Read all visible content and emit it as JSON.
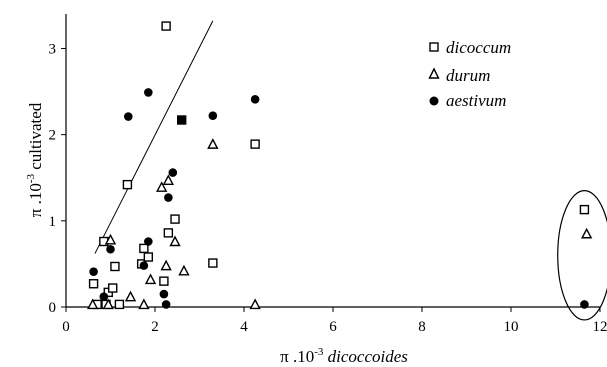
{
  "chart_data": {
    "type": "scatter",
    "xlabel": "π .10",
    "xlabel_exp": "-3",
    "xlabel_italic": "dicoccoides",
    "ylabel": "π .10",
    "ylabel_exp": "-3",
    "ylabel_suffix": "cultivated",
    "xlim": [
      0,
      12
    ],
    "ylim": [
      0,
      3.4
    ],
    "xticks": [
      "0",
      "2",
      "4",
      "6",
      "8",
      "10",
      "12"
    ],
    "yticks": [
      "0",
      "1",
      "2",
      "3"
    ],
    "grid": false,
    "legend_position": "top-right",
    "series": [
      {
        "name": "dicoccum",
        "marker": "square-open",
        "points": [
          [
            0.62,
            0.27
          ],
          [
            0.7,
            0.03
          ],
          [
            0.85,
            0.76
          ],
          [
            0.9,
            0.03
          ],
          [
            0.95,
            0.17
          ],
          [
            1.05,
            0.22
          ],
          [
            1.1,
            0.47
          ],
          [
            1.2,
            0.03
          ],
          [
            1.38,
            1.42
          ],
          [
            1.7,
            0.5
          ],
          [
            1.75,
            0.68
          ],
          [
            1.85,
            0.58
          ],
          [
            2.2,
            0.3
          ],
          [
            2.25,
            3.26
          ],
          [
            2.3,
            0.86
          ],
          [
            2.45,
            1.02
          ],
          [
            2.6,
            2.17
          ],
          [
            3.3,
            0.51
          ],
          [
            4.25,
            1.89
          ],
          [
            11.65,
            1.13
          ]
        ],
        "filled_points": [
          [
            2.6,
            2.17
          ]
        ]
      },
      {
        "name": "durum",
        "marker": "triangle-open",
        "points": [
          [
            0.6,
            0.03
          ],
          [
            0.95,
            0.03
          ],
          [
            1.0,
            0.78
          ],
          [
            1.45,
            0.12
          ],
          [
            1.75,
            0.03
          ],
          [
            1.9,
            0.32
          ],
          [
            2.15,
            1.39
          ],
          [
            2.25,
            0.48
          ],
          [
            2.3,
            1.47
          ],
          [
            2.45,
            0.76
          ],
          [
            2.65,
            0.42
          ],
          [
            3.3,
            1.89
          ],
          [
            4.25,
            0.03
          ],
          [
            11.7,
            0.85
          ]
        ]
      },
      {
        "name": "aestivum",
        "marker": "circle-filled",
        "points": [
          [
            0.62,
            0.41
          ],
          [
            0.85,
            0.12
          ],
          [
            1.0,
            0.67
          ],
          [
            1.4,
            2.21
          ],
          [
            1.75,
            0.48
          ],
          [
            1.85,
            0.76
          ],
          [
            1.85,
            2.49
          ],
          [
            2.2,
            0.15
          ],
          [
            2.25,
            0.03
          ],
          [
            2.3,
            1.27
          ],
          [
            2.4,
            1.56
          ],
          [
            3.3,
            2.22
          ],
          [
            4.25,
            2.41
          ],
          [
            11.65,
            0.03
          ]
        ]
      }
    ],
    "trendline": [
      [
        0.65,
        0.62
      ],
      [
        3.3,
        3.32
      ]
    ],
    "highlight_ellipse": {
      "cx": 11.65,
      "cy": 0.6,
      "rx": 0.6,
      "ry": 0.75
    }
  }
}
